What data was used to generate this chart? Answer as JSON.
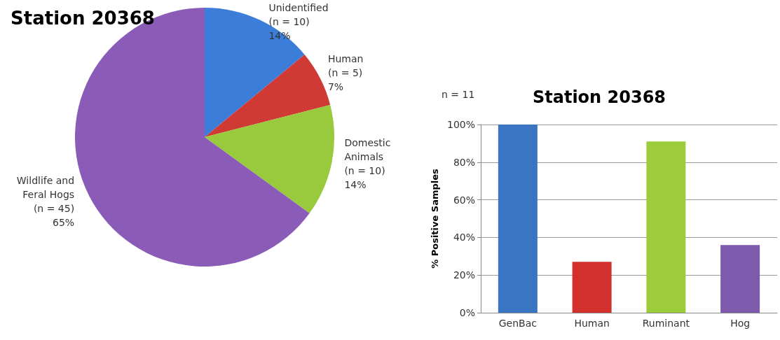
{
  "chart_data": [
    {
      "type": "pie",
      "title": "Station 20368",
      "categories": [
        "Unidentified\n(n = 10)",
        "Human\n(n = 5)",
        "Domestic\nAnimals\n(n = 10)",
        "Wildlife and\nFeral Hogs\n(n = 45)"
      ],
      "values": [
        14,
        7,
        14,
        65
      ],
      "value_labels": [
        "14%",
        "7%",
        "14%",
        "65%"
      ],
      "colors": [
        "#3b7dd8",
        "#d03a35",
        "#99c93c",
        "#8a5cb8"
      ],
      "legend": false
    },
    {
      "type": "bar",
      "title": "Station 20368",
      "annotations": [
        "n = 11"
      ],
      "ylabel": "% Positive Samples",
      "categories": [
        "GenBac",
        "Human",
        "Ruminant",
        "Hog"
      ],
      "values": [
        100,
        27,
        91,
        36
      ],
      "colors": [
        "#3a75c4",
        "#d2302c",
        "#9ccc3c",
        "#7d5aab"
      ],
      "ylim": [
        0,
        100
      ],
      "yticks": [
        {
          "value": 0,
          "label": "0%"
        },
        {
          "value": 20,
          "label": "20%"
        },
        {
          "value": 40,
          "label": "40%"
        },
        {
          "value": 60,
          "label": "60%"
        },
        {
          "value": 80,
          "label": "80%"
        },
        {
          "value": 100,
          "label": "100%"
        }
      ],
      "grid": "y",
      "legend": false
    }
  ]
}
